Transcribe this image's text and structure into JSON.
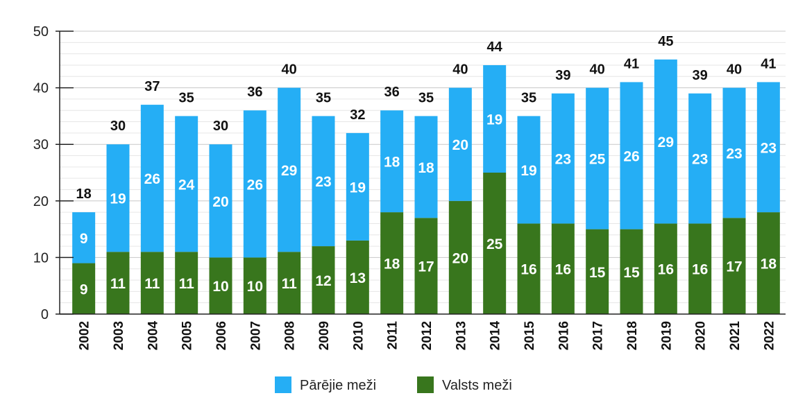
{
  "chart_data": {
    "type": "bar",
    "stacked": true,
    "categories": [
      "2002",
      "2003",
      "2004",
      "2005",
      "2006",
      "2007",
      "2008",
      "2009",
      "2010",
      "2011",
      "2012",
      "2013",
      "2014",
      "2015",
      "2016",
      "2017",
      "2018",
      "2019",
      "2020",
      "2021",
      "2022"
    ],
    "series": [
      {
        "name": "Valsts meži",
        "color": "#38761d",
        "values": [
          9,
          11,
          11,
          11,
          10,
          10,
          11,
          12,
          13,
          18,
          17,
          20,
          25,
          16,
          16,
          15,
          15,
          16,
          16,
          17,
          18
        ]
      },
      {
        "name": "Pārējie meži",
        "color": "#25aef5",
        "values": [
          9,
          19,
          26,
          24,
          20,
          26,
          29,
          23,
          19,
          18,
          18,
          20,
          19,
          19,
          23,
          25,
          26,
          29,
          23,
          23,
          23
        ]
      }
    ],
    "totals": [
      18,
      30,
      37,
      35,
      30,
      36,
      40,
      35,
      32,
      36,
      35,
      40,
      44,
      35,
      39,
      40,
      41,
      45,
      39,
      40,
      41
    ],
    "ylim": [
      0,
      50
    ],
    "yticks": [
      0,
      10,
      20,
      30,
      40,
      50
    ],
    "grid": true,
    "legend_position": "bottom",
    "legend_order": [
      "Pārējie meži",
      "Valsts meži"
    ],
    "title": "",
    "xlabel": "",
    "ylabel": ""
  }
}
